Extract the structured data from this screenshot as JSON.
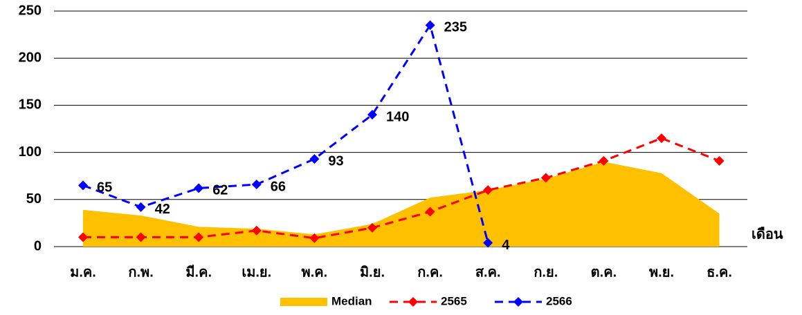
{
  "chart_data": {
    "type": "line",
    "x_label": "เดือน",
    "categories": [
      "ม.ค.",
      "ก.พ.",
      "มี.ค.",
      "เม.ย.",
      "พ.ค.",
      "มิ.ย.",
      "ก.ค.",
      "ส.ค.",
      "ก.ย.",
      "ต.ค.",
      "พ.ย.",
      "ธ.ค."
    ],
    "series": [
      {
        "name": "Median",
        "style": "area",
        "color": "#ffc000",
        "values": [
          39,
          33,
          21,
          19,
          13,
          24,
          52,
          60,
          72,
          90,
          78,
          35
        ]
      },
      {
        "name": "2565",
        "style": "dashed-line",
        "color": "#ff0000",
        "values": [
          10,
          10,
          10,
          17,
          9,
          20,
          37,
          60,
          73,
          91,
          115,
          91
        ]
      },
      {
        "name": "2566",
        "style": "dashed-line",
        "color": "#0000ff",
        "data_labels": true,
        "values": [
          65,
          42,
          62,
          66,
          93,
          140,
          235,
          4,
          null,
          null,
          null,
          null
        ]
      }
    ],
    "ylim": [
      0,
      250
    ],
    "yticks": [
      0,
      50,
      100,
      150,
      200,
      250
    ],
    "grid": true,
    "legend": "bottom"
  }
}
